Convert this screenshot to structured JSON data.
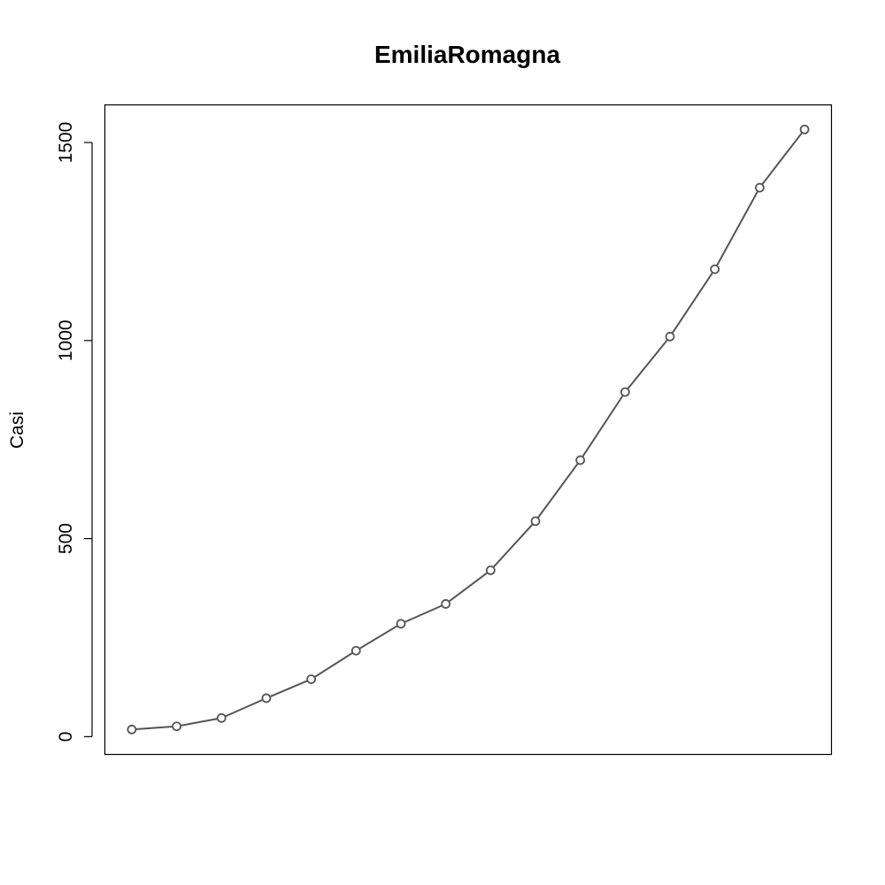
{
  "chart_data": {
    "type": "line",
    "title": "EmiliaRomagna",
    "xlabel": "",
    "ylabel": "Casi",
    "x": [
      1,
      2,
      3,
      4,
      5,
      6,
      7,
      8,
      9,
      10,
      11,
      12,
      13,
      14,
      15,
      16
    ],
    "series": [
      {
        "values": [
          18,
          26,
          47,
          97,
          145,
          217,
          285,
          335,
          420,
          544,
          698,
          870,
          1010,
          1180,
          1386,
          1533
        ]
      }
    ],
    "yticks": [
      0,
      500,
      1000,
      1500
    ],
    "ytick_labels": [
      "0",
      "500",
      "1000",
      "1500"
    ],
    "ylim": [
      -45,
      1595
    ],
    "xlim": [
      0.4,
      16.6
    ],
    "x_axis_shown": false,
    "grid": false,
    "marker": "open-circle",
    "colors": {
      "series": "#555555",
      "frame": "#000000"
    }
  }
}
